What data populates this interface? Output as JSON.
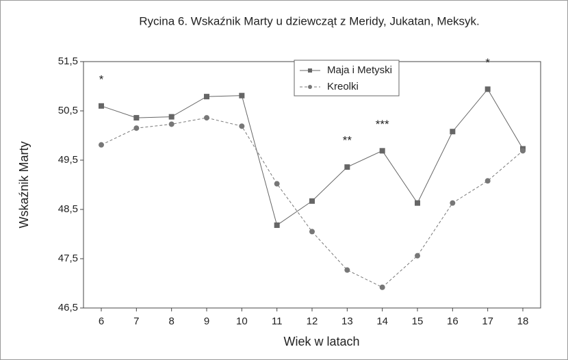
{
  "chart_data": {
    "type": "line",
    "title": "Rycina 6. Wskaźnik Marty u dziewcząt z Meridy, Jukatan, Meksyk.",
    "x_label": "Wiek w latach",
    "y_label": "Wskaźnik Marty",
    "categories": [
      "6",
      "7",
      "8",
      "9",
      "10",
      "11",
      "12",
      "13",
      "14",
      "15",
      "16",
      "17",
      "18"
    ],
    "series": [
      {
        "name": "Maja i Metyski",
        "color": "#666666",
        "marker": "square",
        "dash": "solid",
        "values": [
          50.6,
          50.36,
          50.38,
          50.79,
          50.81,
          48.18,
          48.67,
          49.36,
          49.69,
          48.63,
          50.08,
          50.94,
          49.73
        ]
      },
      {
        "name": "Kreolki",
        "color": "#777777",
        "marker": "circle",
        "dash": "dashed",
        "values": [
          49.81,
          50.15,
          50.23,
          50.36,
          50.19,
          49.02,
          48.05,
          47.27,
          46.92,
          47.56,
          48.63,
          49.08,
          49.69
        ]
      }
    ],
    "annotations": [
      {
        "category": "6",
        "text": "*"
      },
      {
        "category": "13",
        "text": "**"
      },
      {
        "category": "14",
        "text": "***"
      },
      {
        "category": "17",
        "text": "*"
      }
    ],
    "ylim": [
      46.5,
      51.5
    ],
    "yticks": [
      {
        "value": 46.5,
        "label": "46,5"
      },
      {
        "value": 47.5,
        "label": "47,5"
      },
      {
        "value": 48.5,
        "label": "48,5"
      },
      {
        "value": 49.5,
        "label": "49,5"
      },
      {
        "value": 50.5,
        "label": "50,5"
      },
      {
        "value": 51.5,
        "label": "51,5"
      }
    ],
    "legend": "top-center"
  }
}
